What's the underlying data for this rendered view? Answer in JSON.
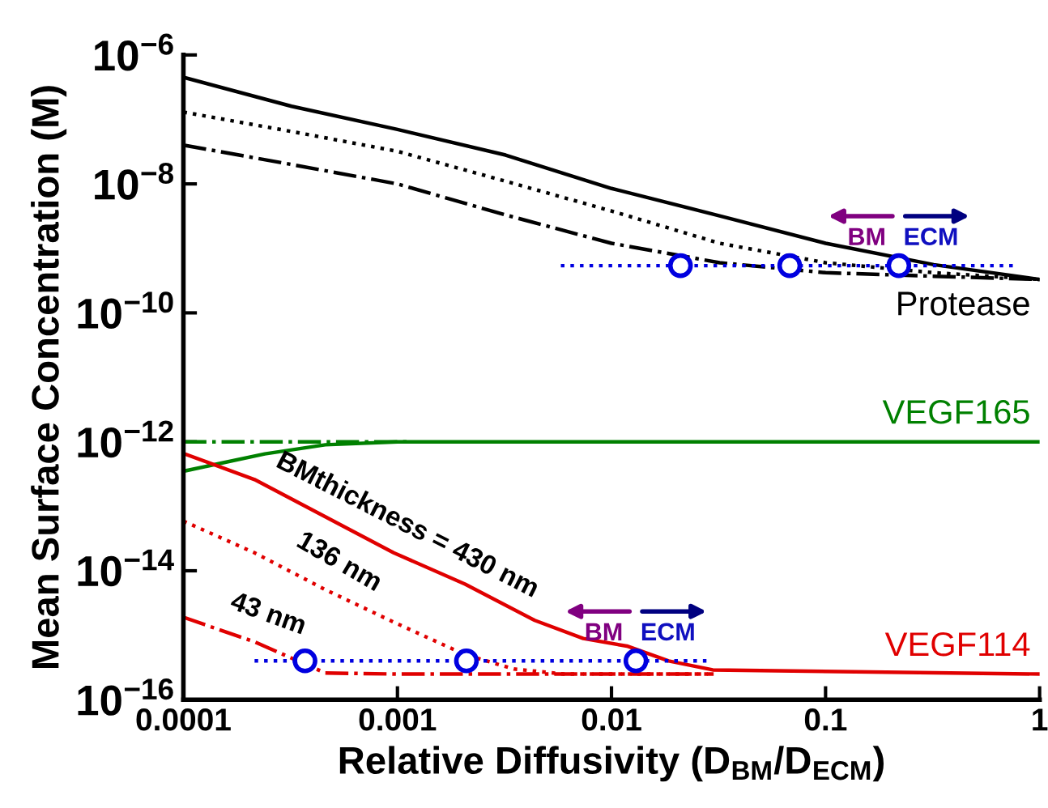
{
  "chart_data": {
    "type": "line",
    "xlabel": "Relative Diffusivity (D$_{BM}$/D$_{ECM}$)",
    "ylabel": "Mean Surface Concentration (M)",
    "log": "xy",
    "grid": false,
    "legend": false,
    "xlim": [
      0.0001,
      1
    ],
    "xticks": [
      0.0001,
      0.001,
      0.01,
      0.1,
      1
    ],
    "ylim": [
      1e-16,
      1e-06
    ],
    "yticks": [
      {
        "value": 1e-16,
        "label": "10$^{−16}$"
      },
      {
        "value": 1e-14,
        "label": "10$^{−14}$"
      },
      {
        "value": 1e-12,
        "label": "10$^{−12}$"
      },
      {
        "value": 1e-10,
        "label": "10$^{−10}$"
      },
      {
        "value": 1e-08,
        "label": "10$^{−8}$"
      },
      {
        "value": 1e-06,
        "label": "10$^{−6}$"
      }
    ],
    "series": [
      {
        "name": "Protease",
        "color": "#000000",
        "line_style": "solid",
        "x": [
          0.0001,
          0.00032,
          0.001,
          0.0032,
          0.01,
          0.032,
          0.1,
          0.32,
          1
        ],
        "values": [
          4.5e-07,
          1.6e-07,
          7e-08,
          2.8e-08,
          8.5e-09,
          3.2e-09,
          1.2e-09,
          5.6e-10,
          3.3e-10
        ]
      },
      {
        "color": "#000000",
        "line_style": "dotted",
        "x": [
          0.0001,
          0.00032,
          0.001,
          0.0032,
          0.01,
          0.032,
          0.1,
          0.32,
          1
        ],
        "values": [
          1.3e-07,
          6.5e-08,
          3.2e-08,
          1.1e-08,
          3.8e-09,
          1.2e-09,
          6e-10,
          4.2e-10,
          3.3e-10
        ]
      },
      {
        "color": "#000000",
        "line_style": "dashdot",
        "x": [
          0.0001,
          0.00032,
          0.001,
          0.0032,
          0.01,
          0.032,
          0.1,
          0.32,
          1
        ],
        "values": [
          4e-08,
          2e-08,
          1e-08,
          3.3e-09,
          1.2e-09,
          6e-10,
          4.2e-10,
          3.7e-10,
          3.3e-10
        ]
      },
      {
        "color": "#0000e0",
        "line_style": "dotted",
        "x": [
          0.0058,
          0.76
        ],
        "values": [
          5.4e-10,
          5.4e-10
        ]
      },
      {
        "type": "scatter",
        "marker": "circle",
        "color": "#0000e0",
        "x": [
          0.021,
          0.068,
          0.22
        ],
        "values": [
          5.4e-10,
          5.4e-10,
          5.4e-10
        ]
      },
      {
        "name": "VEGF165",
        "color": "#008000",
        "line_style": "solid",
        "x": [
          0.0001,
          0.00024,
          0.00046,
          0.001,
          1
        ],
        "values": [
          3.5e-13,
          6.5e-13,
          9e-13,
          1e-12,
          1e-12
        ]
      },
      {
        "color": "#008000",
        "line_style": "dashdot",
        "x": [
          0.0001,
          0.00115
        ],
        "values": [
          1e-12,
          1e-12
        ]
      },
      {
        "name": "VEGF114",
        "color": "#e00000",
        "line_style": "solid",
        "x": [
          0.0001,
          0.000215,
          0.00046,
          0.00096,
          0.00207,
          0.00438,
          0.00738,
          0.0118,
          0.0185,
          0.0297,
          1
        ],
        "values": [
          6.6e-13,
          2.6e-13,
          6.9e-14,
          1.9e-14,
          6.2e-15,
          1.7e-15,
          8.9e-16,
          6.8e-16,
          4e-16,
          2.9e-16,
          2.5e-16
        ]
      },
      {
        "color": "#e00000",
        "line_style": "dotted",
        "x": [
          0.0001,
          0.000215,
          0.00046,
          0.00096,
          0.00207,
          0.0035,
          0.006,
          0.03
        ],
        "values": [
          5.9e-14,
          1.9e-14,
          5.1e-15,
          1.6e-15,
          5e-16,
          3e-16,
          2.5e-16,
          2.5e-16
        ]
      },
      {
        "color": "#e00000",
        "line_style": "dashdot",
        "x": [
          0.0001,
          0.000215,
          0.00046,
          0.001,
          0.03
        ],
        "values": [
          1.9e-15,
          7.9e-16,
          2.6e-16,
          2.5e-16,
          2.5e-16
        ]
      },
      {
        "color": "#0000e0",
        "line_style": "dotted",
        "x": [
          0.000215,
          0.028
        ],
        "values": [
          4e-16,
          4e-16
        ]
      },
      {
        "type": "scatter",
        "marker": "circle",
        "color": "#0000e0",
        "x": [
          0.00037,
          0.0021,
          0.013
        ],
        "values": [
          4e-16,
          4e-16,
          4e-16
        ]
      }
    ],
    "annotations": [
      {
        "text": "BMthickness = 430 nm",
        "x": 0.00096,
        "y": 1.9e-14
      },
      {
        "text": "136 nm",
        "x": 0.00046,
        "y": 5.1e-15
      },
      {
        "text": "43 nm",
        "x": 0.000215,
        "y": 7.9e-16
      },
      {
        "text": "BM",
        "x": 0.22,
        "y": 5.4e-10
      },
      {
        "text": "ECM",
        "x": 0.22,
        "y": 5.4e-10
      },
      {
        "text": "BM",
        "x": 0.013,
        "y": 4e-16
      },
      {
        "text": "ECM",
        "x": 0.013,
        "y": 4e-16
      }
    ]
  }
}
